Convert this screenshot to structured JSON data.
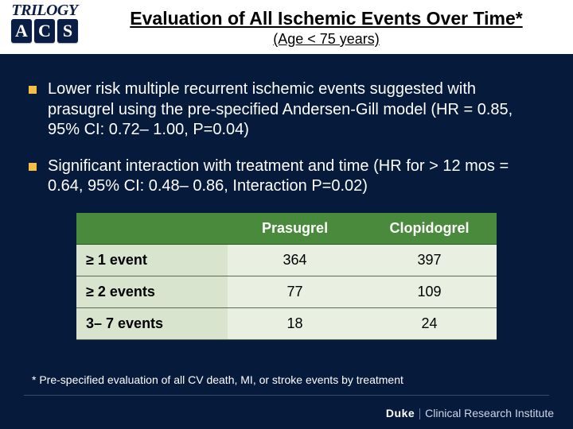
{
  "logo": {
    "top": "TRILOGY",
    "acs": [
      "A",
      "C",
      "S"
    ]
  },
  "header": {
    "title": "Evaluation of All Ischemic Events Over Time*",
    "subtitle": "(Age < 75 years)"
  },
  "bullets": [
    "Lower risk multiple recurrent ischemic events suggested with prasugrel using the pre-specified Andersen-Gill model (HR = 0.85, 95% CI: 0.72– 1.00, P=0.04)",
    "Significant interaction with treatment and time (HR for > 12 mos = 0.64, 95% CI: 0.48– 0.86, Interaction P=0.02)"
  ],
  "table": {
    "columns": [
      "",
      "Prasugrel",
      "Clopidogrel"
    ],
    "rows": [
      [
        "≥ 1 event",
        "364",
        "397"
      ],
      [
        "≥ 2 events",
        "77",
        "109"
      ],
      [
        "3– 7 events",
        "18",
        "24"
      ]
    ],
    "col_widths": [
      "36%",
      "32%",
      "32%"
    ],
    "header_bg": "#4a8a3c",
    "row_label_bg": "#d9e4cf",
    "cell_bg": "#e9efe1",
    "border_color": "#5a6b50"
  },
  "footnote": "* Pre-specified evaluation of all CV death, MI, or stroke events by treatment",
  "footer": {
    "duke": "Duke",
    "rest": "Clinical Research Institute"
  },
  "colors": {
    "page_bg": "#061a3b",
    "bullet_marker": "#f5be46"
  }
}
